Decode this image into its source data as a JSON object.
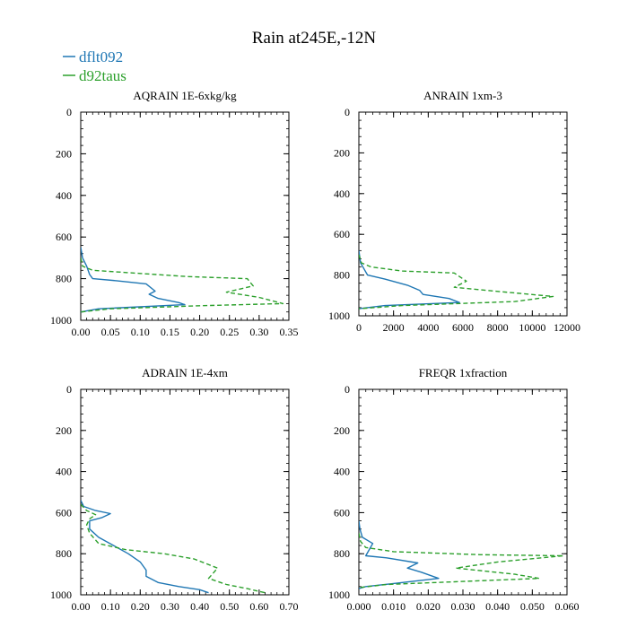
{
  "title": "Rain at245E,-12N",
  "legend": {
    "entries": [
      {
        "label": "dflt092",
        "color": "#1f77b4",
        "dash": "solid"
      },
      {
        "label": "d92taus",
        "color": "#2ca02c",
        "dash": "dashed"
      }
    ]
  },
  "chart_data": [
    {
      "type": "line",
      "title": "AQRAIN  1E-6xkg/kg",
      "xlim": [
        0,
        0.35
      ],
      "ylim": [
        1000,
        0
      ],
      "xticks": [
        0,
        0.05,
        0.1,
        0.15,
        0.2,
        0.25,
        0.3,
        0.35
      ],
      "xtick_labels": [
        "0.00",
        "0.05",
        "0.10",
        "0.15",
        "0.20",
        "0.25",
        "0.30",
        "0.35"
      ],
      "yticks": [
        0,
        200,
        400,
        600,
        800,
        1000
      ],
      "ytick_labels": [
        "0",
        "200",
        "400",
        "600",
        "800",
        "1000"
      ],
      "series": [
        {
          "name": "dflt092",
          "points": [
            [
              0,
              650
            ],
            [
              0.003,
              700
            ],
            [
              0.01,
              740
            ],
            [
              0.015,
              780
            ],
            [
              0.02,
              800
            ],
            [
              0.06,
              810
            ],
            [
              0.11,
              825
            ],
            [
              0.125,
              860
            ],
            [
              0.115,
              875
            ],
            [
              0.13,
              895
            ],
            [
              0.165,
              915
            ],
            [
              0.175,
              925
            ],
            [
              0.03,
              945
            ],
            [
              0,
              960
            ]
          ]
        },
        {
          "name": "d92taus",
          "points": [
            [
              0,
              700
            ],
            [
              0.003,
              740
            ],
            [
              0.02,
              760
            ],
            [
              0.1,
              775
            ],
            [
              0.18,
              790
            ],
            [
              0.28,
              800
            ],
            [
              0.29,
              835
            ],
            [
              0.245,
              865
            ],
            [
              0.3,
              890
            ],
            [
              0.34,
              920
            ],
            [
              0.2,
              930
            ],
            [
              0.05,
              945
            ],
            [
              0,
              960
            ]
          ]
        }
      ]
    },
    {
      "type": "line",
      "title": "ANRAIN  1xm-3",
      "xlim": [
        0,
        12000
      ],
      "ylim": [
        1000,
        0
      ],
      "xticks": [
        0,
        2000,
        4000,
        6000,
        8000,
        10000,
        12000
      ],
      "xtick_labels": [
        "0",
        "2000",
        "4000",
        "6000",
        "8000",
        "10000",
        "12000"
      ],
      "yticks": [
        0,
        200,
        400,
        600,
        800,
        1000
      ],
      "ytick_labels": [
        "0",
        "200",
        "400",
        "600",
        "800",
        "1000"
      ],
      "series": [
        {
          "name": "dflt092",
          "points": [
            [
              0,
              680
            ],
            [
              100,
              740
            ],
            [
              300,
              770
            ],
            [
              500,
              800
            ],
            [
              1500,
              820
            ],
            [
              2800,
              850
            ],
            [
              3500,
              875
            ],
            [
              3700,
              895
            ],
            [
              5200,
              915
            ],
            [
              5800,
              935
            ],
            [
              1500,
              950
            ],
            [
              0,
              965
            ]
          ]
        },
        {
          "name": "d92taus",
          "points": [
            [
              0,
              700
            ],
            [
              150,
              740
            ],
            [
              700,
              760
            ],
            [
              2500,
              780
            ],
            [
              5500,
              790
            ],
            [
              6200,
              830
            ],
            [
              5500,
              860
            ],
            [
              8000,
              880
            ],
            [
              11200,
              905
            ],
            [
              9000,
              930
            ],
            [
              2500,
              950
            ],
            [
              0,
              965
            ]
          ]
        }
      ]
    },
    {
      "type": "line",
      "title": "ADRAIN  1E-4xm",
      "xlim": [
        0,
        0.7
      ],
      "ylim": [
        1000,
        0
      ],
      "xticks": [
        0,
        0.1,
        0.2,
        0.3,
        0.4,
        0.5,
        0.6,
        0.7
      ],
      "xtick_labels": [
        "0.00",
        "0.10",
        "0.20",
        "0.30",
        "0.40",
        "0.50",
        "0.60",
        "0.70"
      ],
      "yticks": [
        0,
        200,
        400,
        600,
        800,
        1000
      ],
      "ytick_labels": [
        "0",
        "200",
        "400",
        "600",
        "800",
        "1000"
      ],
      "series": [
        {
          "name": "dflt092",
          "points": [
            [
              0,
              540
            ],
            [
              0.01,
              570
            ],
            [
              0.05,
              590
            ],
            [
              0.1,
              605
            ],
            [
              0.07,
              625
            ],
            [
              0.03,
              640
            ],
            [
              0.03,
              680
            ],
            [
              0.06,
              720
            ],
            [
              0.11,
              760
            ],
            [
              0.16,
              800
            ],
            [
              0.2,
              840
            ],
            [
              0.22,
              880
            ],
            [
              0.22,
              910
            ],
            [
              0.26,
              940
            ],
            [
              0.33,
              960
            ],
            [
              0.4,
              975
            ],
            [
              0.43,
              990
            ]
          ]
        },
        {
          "name": "d92taus",
          "points": [
            [
              0,
              560
            ],
            [
              0.02,
              590
            ],
            [
              0.05,
              610
            ],
            [
              0.03,
              630
            ],
            [
              0.02,
              660
            ],
            [
              0.03,
              700
            ],
            [
              0.06,
              750
            ],
            [
              0.15,
              780
            ],
            [
              0.28,
              800
            ],
            [
              0.38,
              825
            ],
            [
              0.46,
              870
            ],
            [
              0.43,
              920
            ],
            [
              0.49,
              950
            ],
            [
              0.56,
              970
            ],
            [
              0.62,
              990
            ]
          ]
        }
      ]
    },
    {
      "type": "line",
      "title": "FREQR  1xfraction",
      "xlim": [
        0,
        0.06
      ],
      "ylim": [
        1000,
        0
      ],
      "xticks": [
        0,
        0.01,
        0.02,
        0.03,
        0.04,
        0.05,
        0.06
      ],
      "xtick_labels": [
        "0.000",
        "0.010",
        "0.020",
        "0.030",
        "0.040",
        "0.050",
        "0.060"
      ],
      "yticks": [
        0,
        200,
        400,
        600,
        800,
        1000
      ],
      "ytick_labels": [
        "0",
        "200",
        "400",
        "600",
        "800",
        "1000"
      ],
      "series": [
        {
          "name": "dflt092",
          "points": [
            [
              0,
              640
            ],
            [
              0.0003,
              680
            ],
            [
              0.001,
              720
            ],
            [
              0.004,
              750
            ],
            [
              0.003,
              780
            ],
            [
              0.002,
              810
            ],
            [
              0.008,
              820
            ],
            [
              0.017,
              845
            ],
            [
              0.014,
              870
            ],
            [
              0.018,
              890
            ],
            [
              0.023,
              920
            ],
            [
              0.01,
              945
            ],
            [
              0.002,
              960
            ],
            [
              0,
              970
            ]
          ]
        },
        {
          "name": "d92taus",
          "points": [
            [
              0,
              700
            ],
            [
              0.0005,
              740
            ],
            [
              0.002,
              770
            ],
            [
              0.01,
              790
            ],
            [
              0.035,
              805
            ],
            [
              0.059,
              810
            ],
            [
              0.04,
              840
            ],
            [
              0.028,
              870
            ],
            [
              0.045,
              900
            ],
            [
              0.052,
              920
            ],
            [
              0.03,
              935
            ],
            [
              0.008,
              950
            ],
            [
              0,
              965
            ]
          ]
        }
      ]
    }
  ]
}
